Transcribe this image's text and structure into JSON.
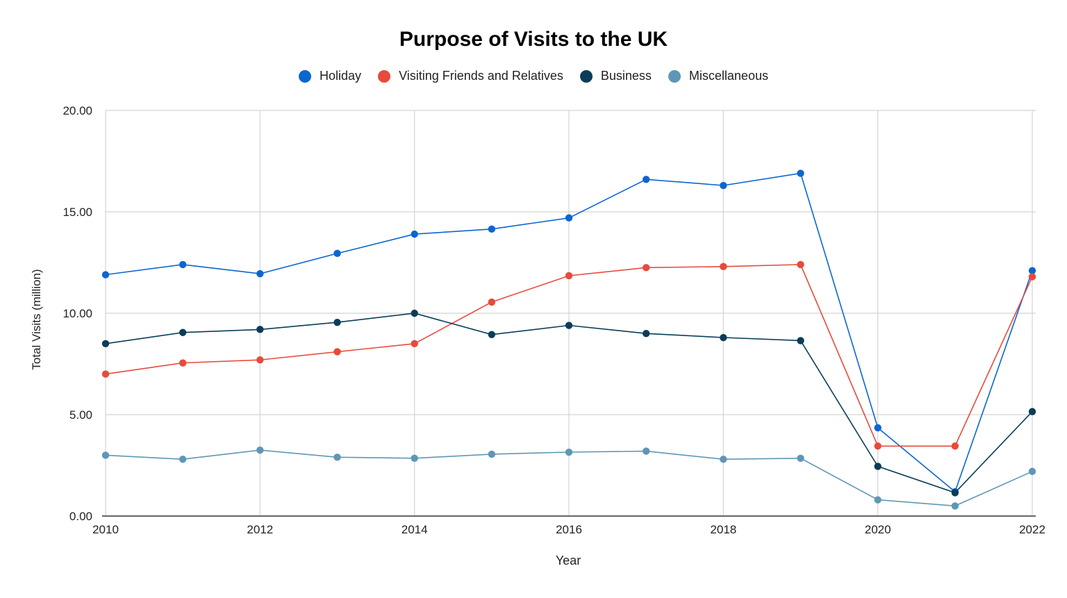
{
  "chart_data": {
    "type": "line",
    "title": "Purpose of Visits to the UK",
    "xlabel": "Year",
    "ylabel": "Total Visits (million)",
    "ylim": [
      0,
      20
    ],
    "yticks": [
      "0.00",
      "5.00",
      "10.00",
      "15.00",
      "20.00"
    ],
    "xlim": [
      2010,
      2022
    ],
    "xticks": [
      "2010",
      "2012",
      "2014",
      "2016",
      "2018",
      "2020",
      "2022"
    ],
    "grid": true,
    "legend_position": "top",
    "x": [
      2010,
      2011,
      2012,
      2013,
      2014,
      2015,
      2016,
      2017,
      2018,
      2019,
      2020,
      2021,
      2022
    ],
    "series": [
      {
        "name": "Holiday",
        "color": "#0b66d0",
        "values": [
          11.9,
          12.4,
          11.95,
          12.95,
          13.9,
          14.15,
          14.7,
          16.6,
          16.3,
          16.9,
          4.35,
          1.2,
          12.1
        ]
      },
      {
        "name": "Visiting Friends and Relatives",
        "color": "#e84a3b",
        "values": [
          7.0,
          7.55,
          7.7,
          8.1,
          8.5,
          10.55,
          11.85,
          12.25,
          12.3,
          12.4,
          3.45,
          3.45,
          11.8
        ]
      },
      {
        "name": "Business",
        "color": "#0a3d57",
        "values": [
          8.5,
          9.05,
          9.2,
          9.55,
          10.0,
          8.95,
          9.4,
          9.0,
          8.8,
          8.65,
          2.45,
          1.15,
          5.15
        ]
      },
      {
        "name": "Miscellaneous",
        "color": "#5e97b6",
        "values": [
          3.0,
          2.8,
          3.25,
          2.9,
          2.85,
          3.05,
          3.15,
          3.2,
          2.8,
          2.85,
          0.8,
          0.5,
          2.2
        ]
      }
    ]
  }
}
